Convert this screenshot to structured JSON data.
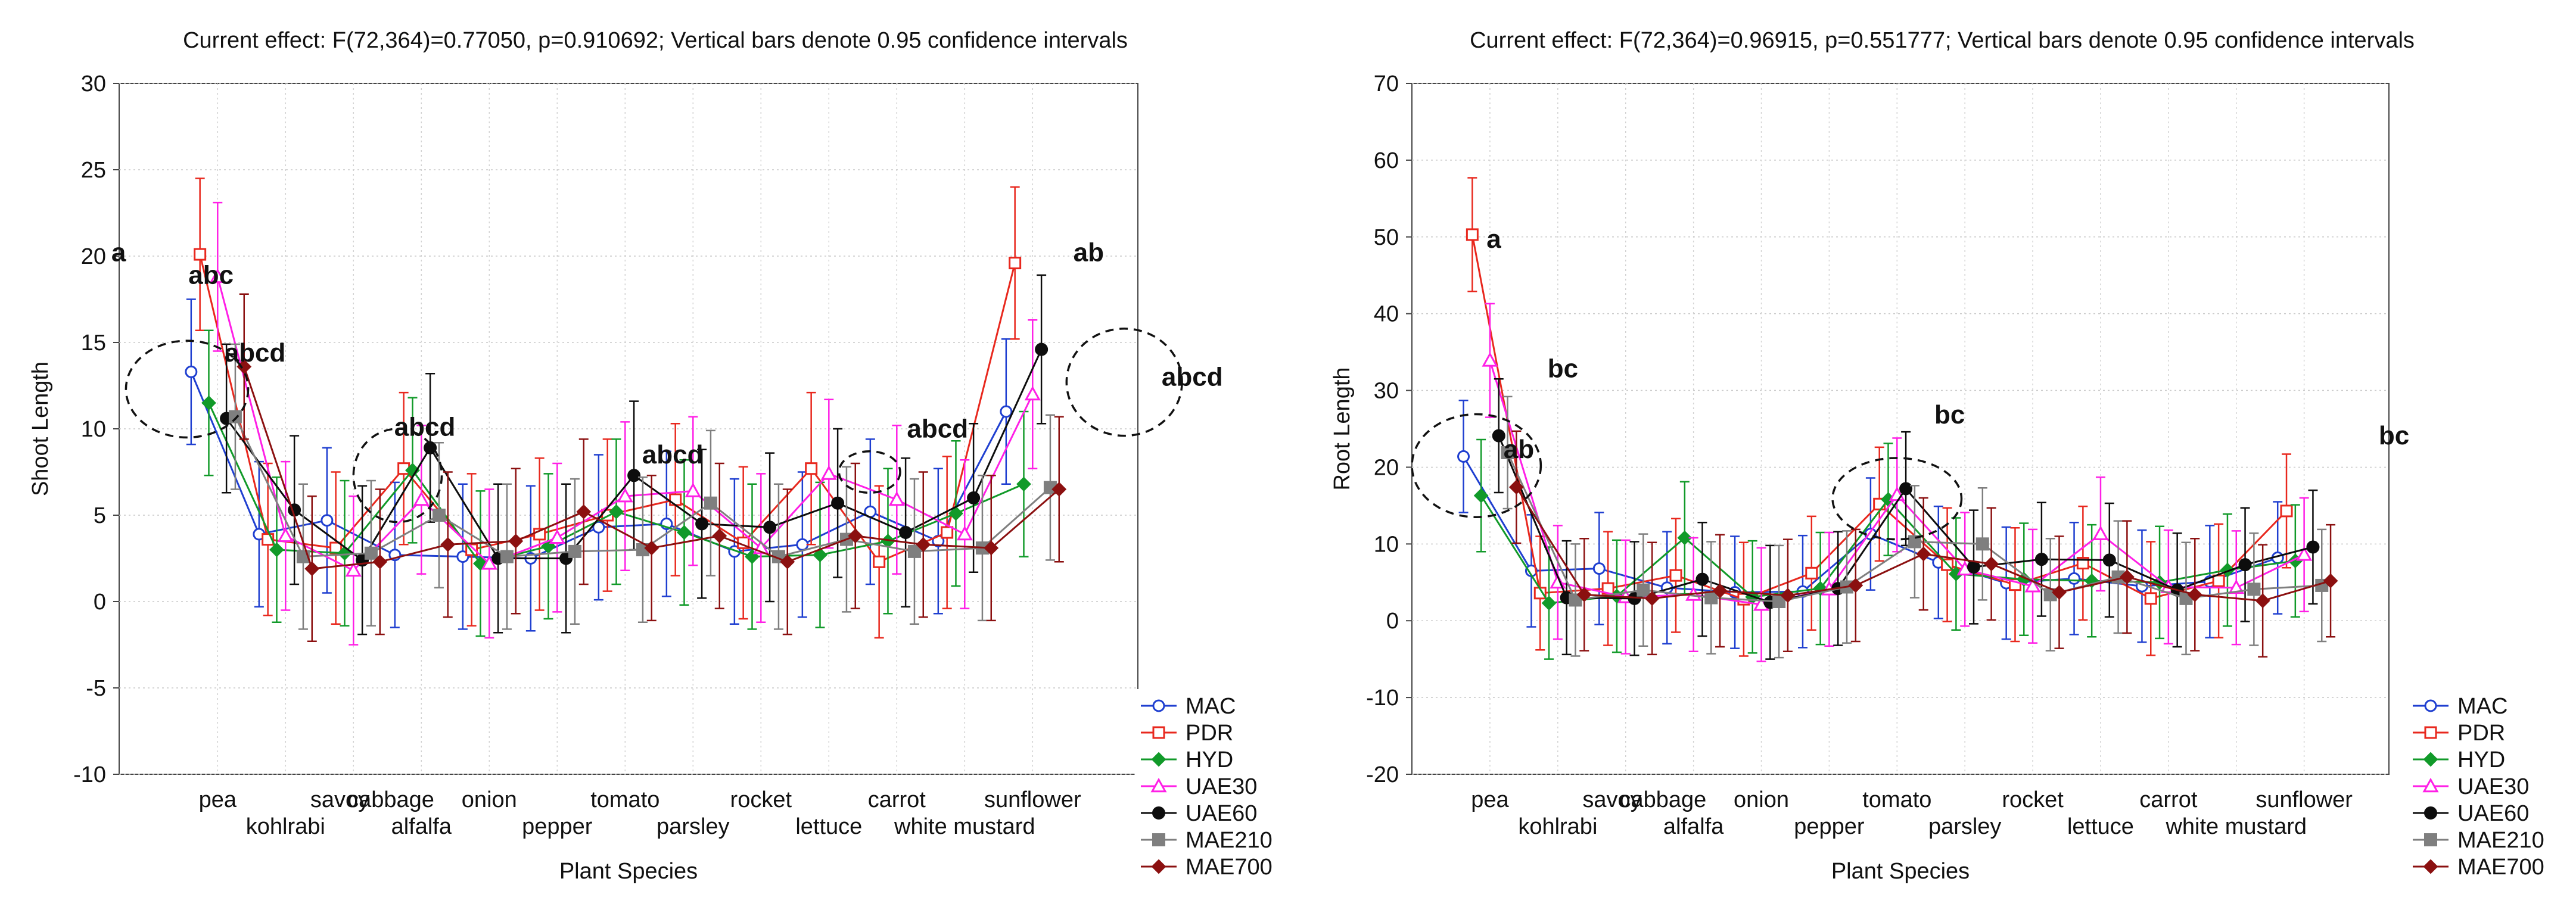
{
  "chart_data": [
    {
      "type": "line",
      "title": "Current effect: F(72,364)=0.77050, p=0.910692; Vertical bars denote 0.95 confidence intervals",
      "xlabel": "Plant Species",
      "ylabel": "Shoot Length",
      "ylim": [
        -10,
        30
      ],
      "yticks": [
        -10,
        -5,
        0,
        5,
        10,
        15,
        20,
        25,
        30
      ],
      "grid": true,
      "legend_position": "bottom-right, outside plot",
      "categories": [
        "pea",
        "kohlrabi",
        "savoy cabbage",
        "alfalfa",
        "onion",
        "pepper",
        "tomato",
        "parsley",
        "rocket",
        "lettuce",
        "carrot",
        "white mustard",
        "sunflower"
      ],
      "tick_labels": [
        {
          "text": "pea",
          "row": 0
        },
        {
          "text": "kohlrabi",
          "row": 1
        },
        {
          "text": "savoy",
          "row": 0
        },
        {
          "text": "cabbage",
          "row": 0
        },
        {
          "text": "alfalfa",
          "row": 1
        },
        {
          "text": "onion",
          "row": 0
        },
        {
          "text": "pepper",
          "row": 1
        },
        {
          "text": "tomato",
          "row": 0
        },
        {
          "text": "parsley",
          "row": 1
        },
        {
          "text": "rocket",
          "row": 0
        },
        {
          "text": "lettuce",
          "row": 1
        },
        {
          "text": "carrot",
          "row": 0
        },
        {
          "text": "white mustard",
          "row": 1
        },
        {
          "text": "sunflower",
          "row": 0
        }
      ],
      "series": [
        {
          "name": "MAC",
          "color": "#1f3fd0",
          "marker": "circle-open",
          "values": [
            13.3,
            3.9,
            4.7,
            2.7,
            2.6,
            2.5,
            4.3,
            4.5,
            2.9,
            3.3,
            5.2,
            3.5,
            11.0
          ],
          "ci": [
            4.2,
            4.2,
            4.2,
            4.2,
            4.2,
            4.2,
            4.2,
            4.2,
            4.2,
            4.2,
            4.2,
            4.2,
            4.2
          ]
        },
        {
          "name": "PDR",
          "color": "#e8281e",
          "marker": "square-open",
          "values": [
            20.1,
            3.6,
            3.1,
            7.7,
            3.0,
            3.9,
            5.0,
            5.9,
            3.4,
            7.7,
            2.3,
            4.0,
            19.6
          ],
          "ci": [
            4.4,
            4.4,
            4.4,
            4.4,
            4.4,
            4.4,
            4.4,
            4.4,
            4.4,
            4.4,
            4.4,
            4.4,
            4.4
          ]
        },
        {
          "name": "HYD",
          "color": "#119a29",
          "marker": "diamond",
          "values": [
            11.5,
            3.0,
            2.8,
            7.6,
            2.2,
            3.2,
            5.2,
            4.0,
            2.6,
            2.7,
            3.5,
            5.1,
            6.8
          ],
          "ci": [
            4.2,
            4.2,
            4.2,
            4.2,
            4.2,
            4.2,
            4.2,
            4.2,
            4.2,
            4.2,
            4.2,
            4.2,
            4.2
          ]
        },
        {
          "name": "UAE30",
          "color": "#ff1fe6",
          "marker": "triangle-open",
          "values": [
            18.8,
            3.8,
            1.8,
            5.9,
            2.2,
            3.7,
            6.1,
            6.4,
            3.1,
            7.4,
            5.9,
            3.9,
            12.0
          ],
          "ci": [
            4.3,
            4.3,
            4.3,
            4.3,
            4.3,
            4.3,
            4.3,
            4.3,
            4.3,
            4.3,
            4.3,
            4.3,
            4.3
          ]
        },
        {
          "name": "UAE60",
          "color": "#0d0d0d",
          "marker": "circle",
          "values": [
            10.6,
            5.3,
            2.4,
            8.9,
            2.5,
            2.5,
            7.3,
            4.5,
            4.3,
            5.7,
            4.0,
            6.0,
            14.6
          ],
          "ci": [
            4.3,
            4.3,
            4.3,
            4.3,
            4.3,
            4.3,
            4.3,
            4.3,
            4.3,
            4.3,
            4.3,
            4.3,
            4.3
          ]
        },
        {
          "name": "MAE210",
          "color": "#7f7f7f",
          "marker": "square",
          "values": [
            10.7,
            2.6,
            2.8,
            5.0,
            2.6,
            2.9,
            3.0,
            5.7,
            2.6,
            3.6,
            2.9,
            3.1,
            6.6
          ],
          "ci": [
            4.2,
            4.2,
            4.2,
            4.2,
            4.2,
            4.2,
            4.2,
            4.2,
            4.2,
            4.2,
            4.2,
            4.2,
            4.2
          ]
        },
        {
          "name": "MAE700",
          "color": "#8b1010",
          "marker": "diamond",
          "values": [
            13.6,
            1.9,
            2.3,
            3.3,
            3.5,
            5.2,
            3.1,
            3.8,
            2.3,
            3.8,
            3.3,
            3.1,
            6.5
          ],
          "ci": [
            4.2,
            4.2,
            4.2,
            4.2,
            4.2,
            4.2,
            4.2,
            4.2,
            4.2,
            4.2,
            4.2,
            4.2,
            4.2
          ]
        }
      ],
      "annotations": [
        {
          "text": "a",
          "x": 0.1,
          "y": 19.7,
          "anchor": "end"
        },
        {
          "text": "abc",
          "x": 1.02,
          "y": 18.4,
          "anchor": "start"
        },
        {
          "text": "abcd",
          "x": 1.55,
          "y": 13.9,
          "anchor": "start"
        },
        {
          "text": "abcd",
          "x": 4.05,
          "y": 9.6,
          "anchor": "start"
        },
        {
          "text": "abcd",
          "x": 7.7,
          "y": 8.0,
          "anchor": "start"
        },
        {
          "text": "abcd",
          "x": 11.6,
          "y": 9.5,
          "anchor": "start"
        },
        {
          "text": "ab",
          "x": 14.5,
          "y": 19.7,
          "anchor": "end"
        },
        {
          "text": "abcd",
          "x": 15.35,
          "y": 12.5,
          "anchor": "start"
        }
      ],
      "circles": [
        {
          "x": 1.0,
          "y": 12.3,
          "rx": 0.9,
          "ry": 2.8
        },
        {
          "x": 4.1,
          "y": 7.3,
          "rx": 0.65,
          "ry": 2.7
        },
        {
          "x": 11.05,
          "y": 7.5,
          "rx": 0.45,
          "ry": 1.2
        },
        {
          "x": 14.8,
          "y": 12.7,
          "rx": 0.85,
          "ry": 3.1
        }
      ]
    },
    {
      "type": "line",
      "title": "Current effect: F(72,364)=0.96915, p=0.551777; Vertical bars denote 0.95 confidence intervals",
      "xlabel": "Plant Species",
      "ylabel": "Root Length",
      "ylim": [
        -20,
        70
      ],
      "yticks": [
        -20,
        -10,
        0,
        10,
        20,
        30,
        40,
        50,
        60,
        70
      ],
      "grid": true,
      "legend_position": "bottom-right, outside plot",
      "categories": [
        "pea",
        "kohlrabi",
        "savoy cabbage",
        "alfalfa",
        "onion",
        "pepper",
        "tomato",
        "parsley",
        "rocket",
        "lettuce",
        "carrot",
        "white mustard",
        "sunflower"
      ],
      "tick_labels": [
        {
          "text": "pea",
          "row": 0
        },
        {
          "text": "kohlrabi",
          "row": 1
        },
        {
          "text": "savoy",
          "row": 0
        },
        {
          "text": "cabbage",
          "row": 0
        },
        {
          "text": "alfalfa",
          "row": 1
        },
        {
          "text": "onion",
          "row": 0
        },
        {
          "text": "pepper",
          "row": 1
        },
        {
          "text": "tomato",
          "row": 0
        },
        {
          "text": "parsley",
          "row": 1
        },
        {
          "text": "rocket",
          "row": 0
        },
        {
          "text": "lettuce",
          "row": 1
        },
        {
          "text": "carrot",
          "row": 0
        },
        {
          "text": "white mustard",
          "row": 1
        },
        {
          "text": "sunflower",
          "row": 0
        }
      ],
      "series": [
        {
          "name": "MAC",
          "color": "#1f3fd0",
          "marker": "circle-open",
          "values": [
            21.4,
            6.5,
            6.8,
            4.3,
            3.7,
            3.8,
            11.3,
            7.6,
            4.9,
            5.5,
            4.5,
            5.1,
            8.2
          ],
          "ci": [
            7.3,
            7.3,
            7.3,
            7.3,
            7.3,
            7.3,
            7.3,
            7.3,
            7.3,
            7.3,
            7.3,
            7.3,
            7.3
          ]
        },
        {
          "name": "PDR",
          "color": "#e8281e",
          "marker": "square-open",
          "values": [
            50.3,
            3.6,
            4.2,
            5.9,
            2.8,
            6.2,
            15.2,
            7.3,
            4.7,
            7.5,
            2.9,
            5.2,
            14.3
          ],
          "ci": [
            7.4,
            7.4,
            7.4,
            7.4,
            7.4,
            7.4,
            7.4,
            7.4,
            7.4,
            7.4,
            7.4,
            7.4,
            7.4
          ]
        },
        {
          "name": "HYD",
          "color": "#119a29",
          "marker": "diamond",
          "values": [
            16.3,
            2.3,
            3.2,
            10.8,
            3.1,
            4.2,
            15.8,
            6.1,
            5.4,
            5.2,
            5.0,
            6.6,
            7.8
          ],
          "ci": [
            7.3,
            7.3,
            7.3,
            7.3,
            7.3,
            7.3,
            7.3,
            7.3,
            7.3,
            7.3,
            7.3,
            7.3,
            7.3
          ]
        },
        {
          "name": "UAE30",
          "color": "#ff1fe6",
          "marker": "triangle-open",
          "values": [
            33.9,
            5.0,
            3.1,
            3.4,
            2.1,
            4.1,
            16.4,
            6.7,
            4.5,
            11.3,
            4.4,
            4.3,
            8.6
          ],
          "ci": [
            7.4,
            7.4,
            7.4,
            7.4,
            7.4,
            7.4,
            7.4,
            7.4,
            7.4,
            7.4,
            7.4,
            7.4,
            7.4
          ]
        },
        {
          "name": "UAE60",
          "color": "#0d0d0d",
          "marker": "circle",
          "values": [
            24.1,
            3.0,
            2.9,
            5.4,
            2.4,
            4.2,
            17.2,
            7.0,
            8.0,
            7.9,
            4.0,
            7.3,
            9.6
          ],
          "ci": [
            7.4,
            7.4,
            7.4,
            7.4,
            7.4,
            7.4,
            7.4,
            7.4,
            7.4,
            7.4,
            7.4,
            7.4,
            7.4
          ]
        },
        {
          "name": "MAE210",
          "color": "#7f7f7f",
          "marker": "square",
          "values": [
            21.9,
            2.7,
            4.0,
            3.0,
            2.5,
            4.4,
            10.3,
            10.0,
            3.4,
            5.7,
            2.9,
            4.1,
            4.6
          ],
          "ci": [
            7.3,
            7.3,
            7.3,
            7.3,
            7.3,
            7.3,
            7.3,
            7.3,
            7.3,
            7.3,
            7.3,
            7.3,
            7.3
          ]
        },
        {
          "name": "MAE700",
          "color": "#8b1010",
          "marker": "diamond",
          "values": [
            17.4,
            3.4,
            2.9,
            3.9,
            3.3,
            4.6,
            8.7,
            7.4,
            3.7,
            5.7,
            3.4,
            2.6,
            5.2
          ],
          "ci": [
            7.3,
            7.3,
            7.3,
            7.3,
            7.3,
            7.3,
            7.3,
            7.3,
            7.3,
            7.3,
            7.3,
            7.3,
            7.3
          ]
        }
      ],
      "annotations": [
        {
          "text": "a",
          "x": 1.1,
          "y": 48.6,
          "anchor": "start"
        },
        {
          "text": "ab",
          "x": 1.35,
          "y": 21.2,
          "anchor": "start"
        },
        {
          "text": "bc",
          "x": 2.0,
          "y": 31.7,
          "anchor": "start"
        },
        {
          "text": "bc",
          "x": 7.7,
          "y": 25.7,
          "anchor": "start"
        },
        {
          "text": "bc",
          "x": 14.25,
          "y": 23.0,
          "anchor": "start"
        }
      ],
      "circles": [
        {
          "x": 0.95,
          "y": 20.2,
          "rx": 0.95,
          "ry": 6.7
        },
        {
          "x": 7.15,
          "y": 15.9,
          "rx": 0.95,
          "ry": 5.3
        }
      ]
    }
  ]
}
